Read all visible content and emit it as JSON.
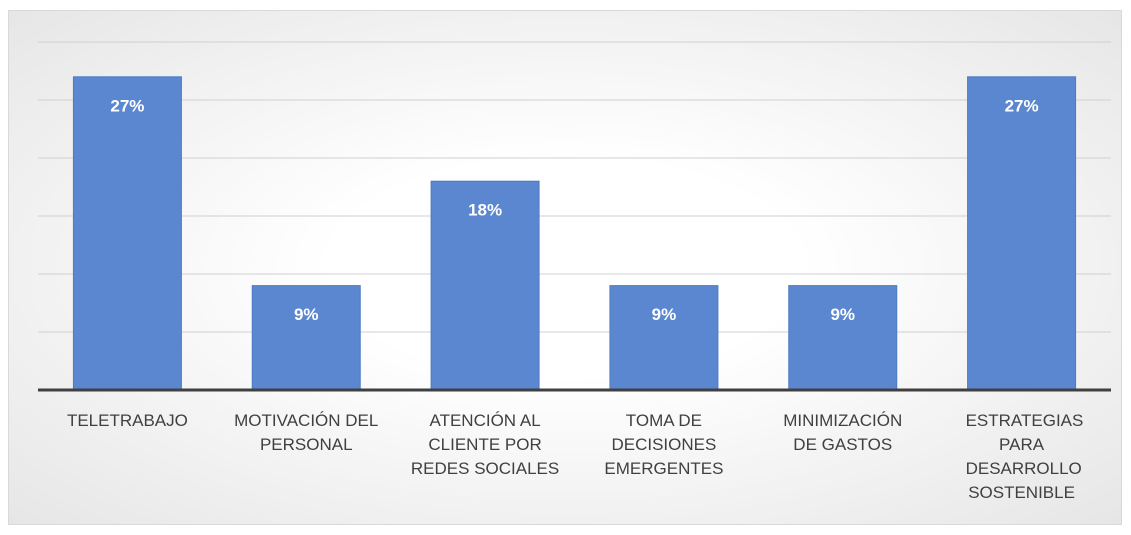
{
  "chart_data": {
    "type": "bar",
    "categories": [
      "TELETRABAJO",
      "MOTIVACIÓN DEL PERSONAL",
      "ATENCIÓN AL CLIENTE POR REDES SOCIALES",
      "TOMA DE DECISIONES EMERGENTES",
      "MINIMIZACIÓN DE GASTOS",
      "ESTRATEGIAS PARA DESARROLLO SOSTENIBLE"
    ],
    "values": [
      27,
      9,
      18,
      9,
      9,
      27
    ],
    "value_labels": [
      "27%",
      "9%",
      "18%",
      "9%",
      "9%",
      "27%"
    ],
    "color": "#5b87d0",
    "ylim": [
      0,
      30
    ],
    "yticks": [
      0,
      5,
      10,
      15,
      20,
      25,
      30
    ],
    "grid": true
  }
}
